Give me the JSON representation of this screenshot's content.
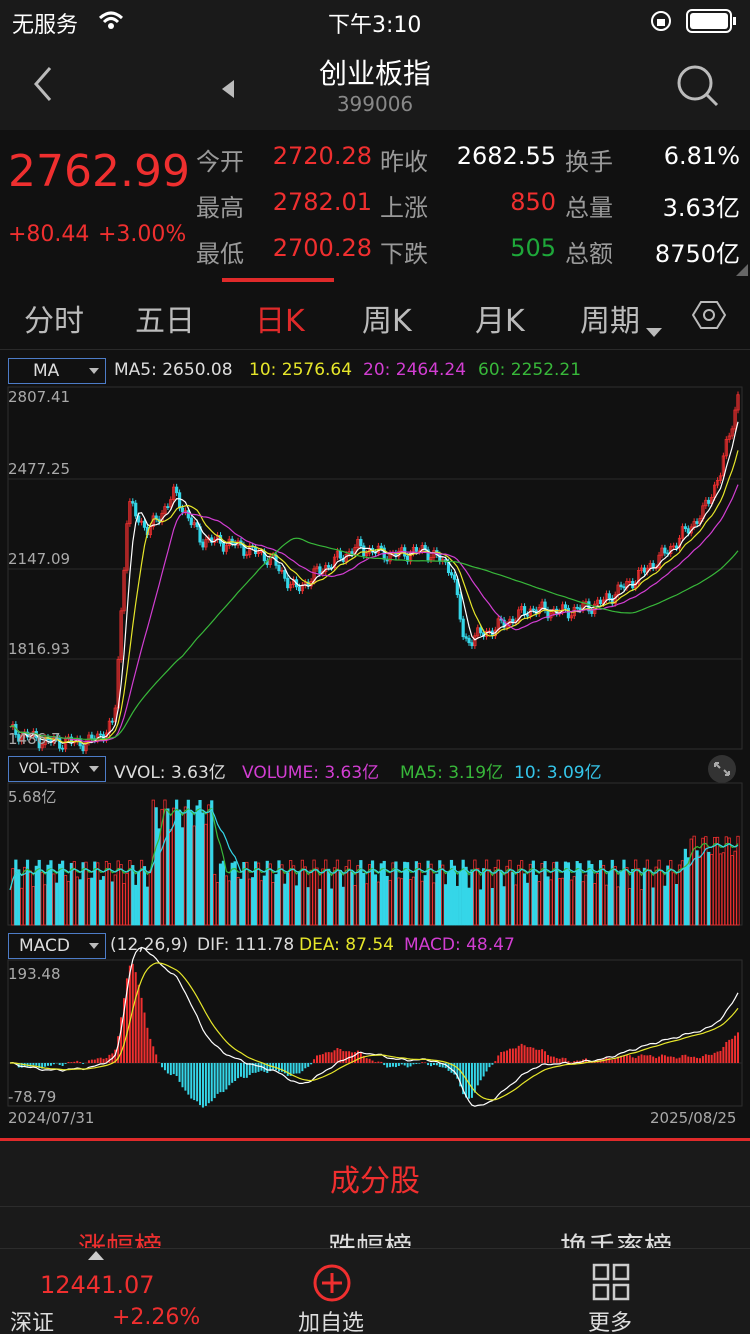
{
  "status": {
    "carrier": "无服务",
    "time": "下午3:10"
  },
  "nav": {
    "title": "创业板指",
    "code": "399006"
  },
  "quote": {
    "price": "2762.99",
    "change": "+80.44",
    "change_pct": "+3.00%",
    "open_label": "今开",
    "open": "2720.28",
    "prev_close_label": "昨收",
    "prev_close": "2682.55",
    "turnover_label": "换手",
    "turnover": "6.81%",
    "high_label": "最高",
    "high": "2782.01",
    "up_label": "上涨",
    "up": "850",
    "volume_label": "总量",
    "volume": "3.63亿",
    "low_label": "最低",
    "low": "2700.28",
    "down_label": "下跌",
    "down": "505",
    "amount_label": "总额",
    "amount": "8750亿"
  },
  "tabs": [
    "分时",
    "五日",
    "日K",
    "周K",
    "月K",
    "周期"
  ],
  "active_tab": "日K",
  "ma_panel": {
    "selector": "MA",
    "ma5": "MA5: 2650.08",
    "ma10": "10: 2576.64",
    "ma20": "20: 2464.24",
    "ma60": "60: 2252.21",
    "y_labels": [
      "2807.41",
      "2477.25",
      "2147.09",
      "1816.93",
      "1486.7"
    ]
  },
  "vol_panel": {
    "selector": "VOL-TDX",
    "vvol": "VVOL: 3.63亿",
    "volume": "VOLUME: 3.63亿",
    "ma5": "MA5: 3.19亿",
    "ma10": "10: 3.09亿",
    "y_max": "5.68亿"
  },
  "macd_panel": {
    "selector": "MACD",
    "params": "(12,26,9)",
    "dif": "DIF: 111.78",
    "dea": "DEA: 87.54",
    "macd": "MACD: 48.47",
    "y_max": "193.48",
    "y_min": "-78.79",
    "date_start": "2024/07/31",
    "date_end": "2025/08/25"
  },
  "section": {
    "title": "成分股",
    "subtabs": [
      "涨幅榜",
      "跌幅榜",
      "换手率榜"
    ]
  },
  "footer": {
    "index_name": "深证",
    "index_value": "12441.07",
    "index_change": "+2.26%",
    "add_label": "加自选",
    "more_label": "更多"
  },
  "colors": {
    "up": "#ef2f2f",
    "down": "#35d6e8",
    "ma5": "#ffffff",
    "ma10": "#e6e62a",
    "ma20": "#d23ed2",
    "ma60": "#38b83a"
  },
  "icons": [
    "back-icon",
    "prev-icon",
    "search-icon",
    "settings-icon",
    "expand-icon",
    "add-icon",
    "grid-icon"
  ]
}
